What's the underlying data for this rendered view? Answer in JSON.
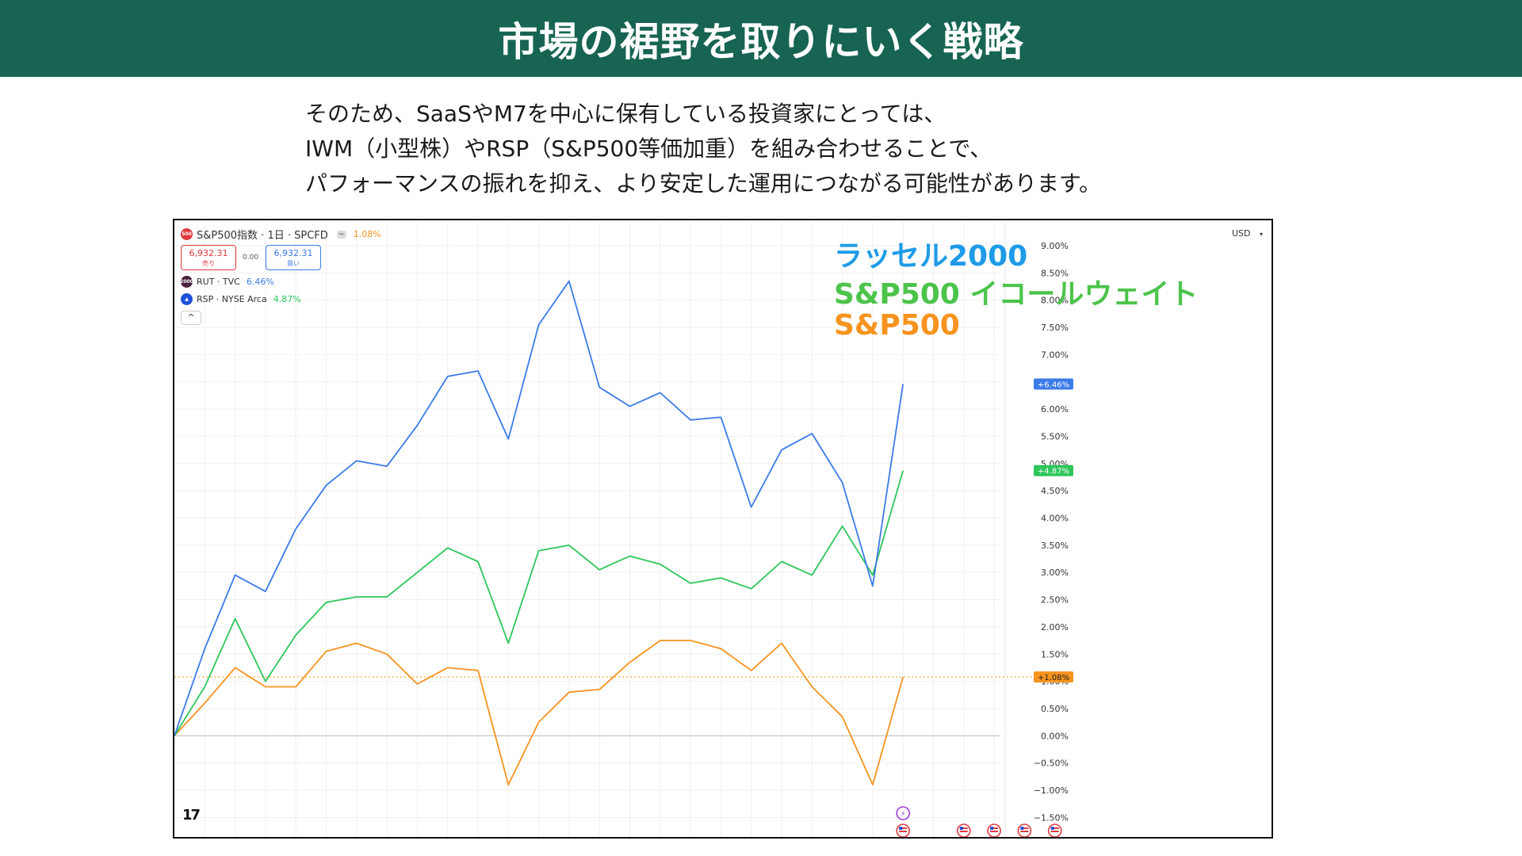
{
  "header": {
    "title": "市場の裾野を取りにいく戦略"
  },
  "body_text": [
    "そのため、SaaSやM7を中心に保有している投資家にとっては、",
    "IWM（小型株）やRSP（S&P500等価加重）を組み合わせることで、",
    "パフォーマンスの振れを抑え、より安定した運用につながる可能性があります。"
  ],
  "chart_data": {
    "type": "line",
    "title": "S&P500指数 · 1日 · SPCFD",
    "main_change": "1.08%",
    "sell_price": "6,932.31",
    "sell_label": "売り",
    "spread": "0.00",
    "buy_price": "6,932.31",
    "buy_label": "買い",
    "currency": "USD",
    "compare_symbols": [
      {
        "name": "RUT · TVC",
        "change": "6.46%",
        "icon_text": "2000",
        "color": "#3b7be8"
      },
      {
        "name": "RSP · NYSE Arca",
        "change": "4.87%",
        "icon_text": "▲",
        "color": "#2cc65a"
      }
    ],
    "main_icon_text": "500",
    "collapse_label": "^",
    "ylim": [
      -1.5,
      9.0
    ],
    "y_ticks": [
      "9.00%",
      "8.50%",
      "8.00%",
      "7.50%",
      "7.00%",
      "6.50%",
      "6.00%",
      "5.50%",
      "5.00%",
      "4.50%",
      "4.00%",
      "3.50%",
      "3.00%",
      "2.50%",
      "2.00%",
      "1.50%",
      "1.00%",
      "0.50%",
      "0.00%",
      "−0.50%",
      "−1.00%",
      "−1.50%"
    ],
    "y_tick_values": [
      9.0,
      8.5,
      8.0,
      7.5,
      7.0,
      6.5,
      6.0,
      5.5,
      5.0,
      4.5,
      4.0,
      3.5,
      3.0,
      2.5,
      2.0,
      1.5,
      1.0,
      0.5,
      0.0,
      -0.5,
      -1.0,
      -1.5
    ],
    "n_slots": 35,
    "series": [
      {
        "name": "ラッセル2000",
        "color": "#3b7be8",
        "badge": "+6.46%",
        "last": 6.46,
        "values": [
          0,
          1.6,
          2.95,
          2.65,
          3.8,
          4.6,
          5.05,
          4.95,
          5.7,
          6.6,
          6.7,
          5.45,
          7.55,
          8.35,
          6.4,
          6.05,
          6.3,
          5.8,
          5.85,
          4.2,
          5.25,
          5.55,
          4.65,
          2.75,
          6.46
        ]
      },
      {
        "name": "S&P500 イコールウェイト",
        "color": "#2cc65a",
        "badge": "+4.87%",
        "last": 4.87,
        "values": [
          0,
          0.9,
          2.15,
          1.0,
          1.85,
          2.45,
          2.55,
          2.55,
          3.0,
          3.45,
          3.2,
          1.7,
          3.4,
          3.5,
          3.05,
          3.3,
          3.15,
          2.8,
          2.9,
          2.7,
          3.2,
          2.95,
          3.85,
          2.95,
          4.87
        ]
      },
      {
        "name": "S&P500",
        "color": "#f7931e",
        "badge": "+1.08%",
        "last": 1.08,
        "values": [
          0,
          0.6,
          1.25,
          0.9,
          0.9,
          1.55,
          1.7,
          1.5,
          0.95,
          1.25,
          1.2,
          -0.9,
          0.25,
          0.8,
          0.85,
          1.35,
          1.75,
          1.75,
          1.6,
          1.2,
          1.7,
          0.9,
          0.35,
          -0.9,
          1.08
        ]
      }
    ],
    "legend": [
      {
        "label": "ラッセル2000",
        "color": "#1e9be8"
      },
      {
        "label": "S&P500 イコールウェイト",
        "color": "#4cc44a"
      },
      {
        "label": "S&P500",
        "color": "#f7931e"
      }
    ],
    "event_markers": [
      {
        "slot": 24,
        "kind": "flash"
      },
      {
        "slot": 24,
        "kind": "flag"
      },
      {
        "slot": 26,
        "kind": "flag"
      },
      {
        "slot": 27,
        "kind": "flag"
      },
      {
        "slot": 28,
        "kind": "flag"
      },
      {
        "slot": 29,
        "kind": "flag"
      }
    ],
    "logo_text": "17"
  }
}
